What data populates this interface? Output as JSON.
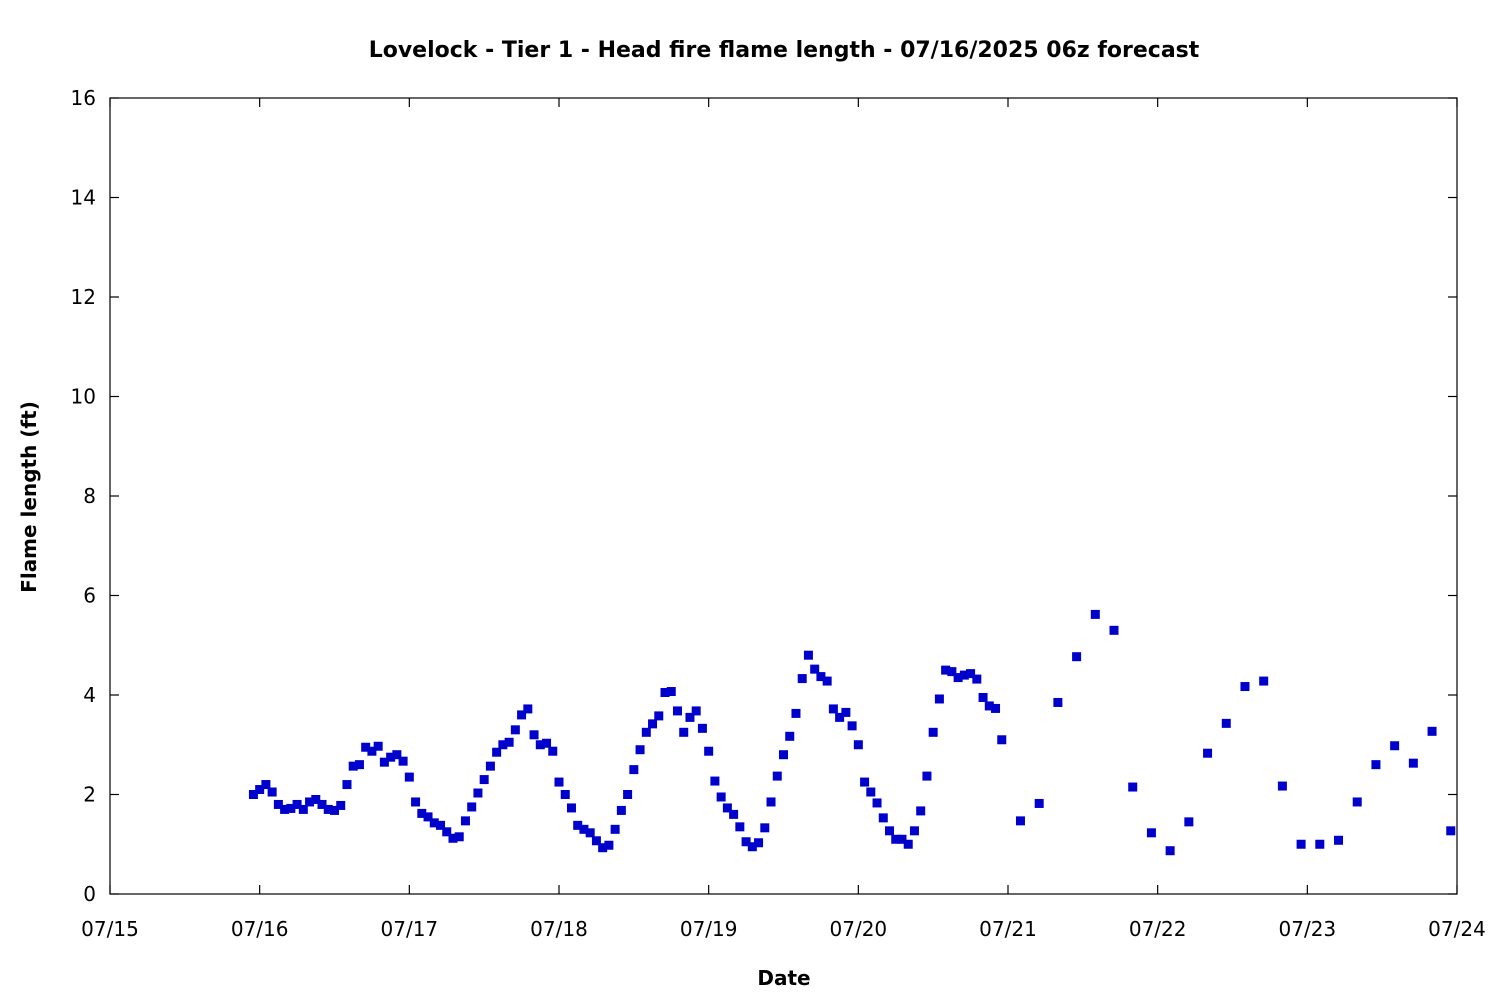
{
  "chart_data": {
    "type": "scatter",
    "title": "Lovelock - Tier 1 - Head fire flame length - 07/16/2025 06z forecast",
    "xlabel": "Date",
    "ylabel": "Flame length (ft)",
    "xlim": [
      "07/15 00:00",
      "07/24 00:00"
    ],
    "ylim": [
      0,
      16
    ],
    "x_ticks": [
      "07/15",
      "07/16",
      "07/17",
      "07/18",
      "07/19",
      "07/20",
      "07/21",
      "07/22",
      "07/23",
      "07/24"
    ],
    "y_ticks": [
      0,
      2,
      4,
      6,
      8,
      10,
      12,
      14,
      16
    ],
    "grid": false,
    "marker_color": "#0000cc",
    "series": [
      {
        "marker": "square",
        "points": [
          [
            "07/15 23:00",
            2.0
          ],
          [
            "07/16 00:00",
            2.1
          ],
          [
            "07/16 01:00",
            2.2
          ],
          [
            "07/16 02:00",
            2.05
          ],
          [
            "07/16 03:00",
            1.8
          ],
          [
            "07/16 04:00",
            1.7
          ],
          [
            "07/16 05:00",
            1.72
          ],
          [
            "07/16 06:00",
            1.8
          ],
          [
            "07/16 07:00",
            1.7
          ],
          [
            "07/16 08:00",
            1.85
          ],
          [
            "07/16 09:00",
            1.9
          ],
          [
            "07/16 10:00",
            1.8
          ],
          [
            "07/16 11:00",
            1.7
          ],
          [
            "07/16 12:00",
            1.68
          ],
          [
            "07/16 13:00",
            1.78
          ],
          [
            "07/16 14:00",
            2.2
          ],
          [
            "07/16 15:00",
            2.57
          ],
          [
            "07/16 16:00",
            2.6
          ],
          [
            "07/16 17:00",
            2.95
          ],
          [
            "07/16 18:00",
            2.87
          ],
          [
            "07/16 19:00",
            2.97
          ],
          [
            "07/16 20:00",
            2.65
          ],
          [
            "07/16 21:00",
            2.75
          ],
          [
            "07/16 22:00",
            2.8
          ],
          [
            "07/16 23:00",
            2.67
          ],
          [
            "07/17 00:00",
            2.35
          ],
          [
            "07/17 01:00",
            1.85
          ],
          [
            "07/17 02:00",
            1.62
          ],
          [
            "07/17 03:00",
            1.55
          ],
          [
            "07/17 04:00",
            1.43
          ],
          [
            "07/17 05:00",
            1.38
          ],
          [
            "07/17 06:00",
            1.25
          ],
          [
            "07/17 07:00",
            1.12
          ],
          [
            "07/17 08:00",
            1.15
          ],
          [
            "07/17 09:00",
            1.47
          ],
          [
            "07/17 10:00",
            1.75
          ],
          [
            "07/17 11:00",
            2.03
          ],
          [
            "07/17 12:00",
            2.3
          ],
          [
            "07/17 13:00",
            2.57
          ],
          [
            "07/17 14:00",
            2.85
          ],
          [
            "07/17 15:00",
            3.0
          ],
          [
            "07/17 16:00",
            3.05
          ],
          [
            "07/17 17:00",
            3.3
          ],
          [
            "07/17 18:00",
            3.6
          ],
          [
            "07/17 19:00",
            3.72
          ],
          [
            "07/17 20:00",
            3.2
          ],
          [
            "07/17 21:00",
            3.0
          ],
          [
            "07/17 22:00",
            3.03
          ],
          [
            "07/17 23:00",
            2.87
          ],
          [
            "07/18 00:00",
            2.25
          ],
          [
            "07/18 01:00",
            2.0
          ],
          [
            "07/18 02:00",
            1.73
          ],
          [
            "07/18 03:00",
            1.38
          ],
          [
            "07/18 04:00",
            1.3
          ],
          [
            "07/18 05:00",
            1.23
          ],
          [
            "07/18 06:00",
            1.07
          ],
          [
            "07/18 07:00",
            0.93
          ],
          [
            "07/18 08:00",
            0.98
          ],
          [
            "07/18 09:00",
            1.3
          ],
          [
            "07/18 10:00",
            1.68
          ],
          [
            "07/18 11:00",
            2.0
          ],
          [
            "07/18 12:00",
            2.5
          ],
          [
            "07/18 13:00",
            2.9
          ],
          [
            "07/18 14:00",
            3.25
          ],
          [
            "07/18 15:00",
            3.42
          ],
          [
            "07/18 16:00",
            3.58
          ],
          [
            "07/18 17:00",
            4.05
          ],
          [
            "07/18 18:00",
            4.07
          ],
          [
            "07/18 19:00",
            3.68
          ],
          [
            "07/18 20:00",
            3.25
          ],
          [
            "07/18 21:00",
            3.55
          ],
          [
            "07/18 22:00",
            3.68
          ],
          [
            "07/18 23:00",
            3.33
          ],
          [
            "07/19 00:00",
            2.87
          ],
          [
            "07/19 01:00",
            2.27
          ],
          [
            "07/19 02:00",
            1.95
          ],
          [
            "07/19 03:00",
            1.73
          ],
          [
            "07/19 04:00",
            1.6
          ],
          [
            "07/19 05:00",
            1.35
          ],
          [
            "07/19 06:00",
            1.05
          ],
          [
            "07/19 07:00",
            0.95
          ],
          [
            "07/19 08:00",
            1.03
          ],
          [
            "07/19 09:00",
            1.33
          ],
          [
            "07/19 10:00",
            1.85
          ],
          [
            "07/19 11:00",
            2.37
          ],
          [
            "07/19 12:00",
            2.8
          ],
          [
            "07/19 13:00",
            3.17
          ],
          [
            "07/19 14:00",
            3.63
          ],
          [
            "07/19 15:00",
            4.33
          ],
          [
            "07/19 16:00",
            4.8
          ],
          [
            "07/19 17:00",
            4.52
          ],
          [
            "07/19 18:00",
            4.37
          ],
          [
            "07/19 19:00",
            4.28
          ],
          [
            "07/19 20:00",
            3.72
          ],
          [
            "07/19 21:00",
            3.55
          ],
          [
            "07/19 22:00",
            3.65
          ],
          [
            "07/19 23:00",
            3.38
          ],
          [
            "07/20 00:00",
            3.0
          ],
          [
            "07/20 01:00",
            2.25
          ],
          [
            "07/20 02:00",
            2.05
          ],
          [
            "07/20 03:00",
            1.83
          ],
          [
            "07/20 04:00",
            1.53
          ],
          [
            "07/20 05:00",
            1.27
          ],
          [
            "07/20 06:00",
            1.1
          ],
          [
            "07/20 07:00",
            1.1
          ],
          [
            "07/20 08:00",
            1.0
          ],
          [
            "07/20 09:00",
            1.27
          ],
          [
            "07/20 10:00",
            1.67
          ],
          [
            "07/20 11:00",
            2.37
          ],
          [
            "07/20 12:00",
            3.25
          ],
          [
            "07/20 13:00",
            3.92
          ],
          [
            "07/20 14:00",
            4.5
          ],
          [
            "07/20 15:00",
            4.47
          ],
          [
            "07/20 16:00",
            4.35
          ],
          [
            "07/20 17:00",
            4.4
          ],
          [
            "07/20 18:00",
            4.43
          ],
          [
            "07/20 19:00",
            4.32
          ],
          [
            "07/20 20:00",
            3.95
          ],
          [
            "07/20 21:00",
            3.78
          ],
          [
            "07/20 22:00",
            3.73
          ],
          [
            "07/20 23:00",
            3.1
          ],
          [
            "07/21 02:00",
            1.47
          ],
          [
            "07/21 05:00",
            1.82
          ],
          [
            "07/21 08:00",
            3.85
          ],
          [
            "07/21 11:00",
            4.77
          ],
          [
            "07/21 14:00",
            5.62
          ],
          [
            "07/21 17:00",
            5.3
          ],
          [
            "07/21 20:00",
            2.15
          ],
          [
            "07/21 23:00",
            1.23
          ],
          [
            "07/22 02:00",
            0.87
          ],
          [
            "07/22 05:00",
            1.45
          ],
          [
            "07/22 08:00",
            2.83
          ],
          [
            "07/22 11:00",
            3.43
          ],
          [
            "07/22 14:00",
            4.17
          ],
          [
            "07/22 17:00",
            4.28
          ],
          [
            "07/22 20:00",
            2.17
          ],
          [
            "07/22 23:00",
            1.0
          ],
          [
            "07/23 02:00",
            1.0
          ],
          [
            "07/23 05:00",
            1.08
          ],
          [
            "07/23 08:00",
            1.85
          ],
          [
            "07/23 11:00",
            2.6
          ],
          [
            "07/23 14:00",
            2.98
          ],
          [
            "07/23 17:00",
            2.63
          ],
          [
            "07/23 20:00",
            3.27
          ],
          [
            "07/23 23:00",
            1.27
          ]
        ]
      }
    ]
  }
}
